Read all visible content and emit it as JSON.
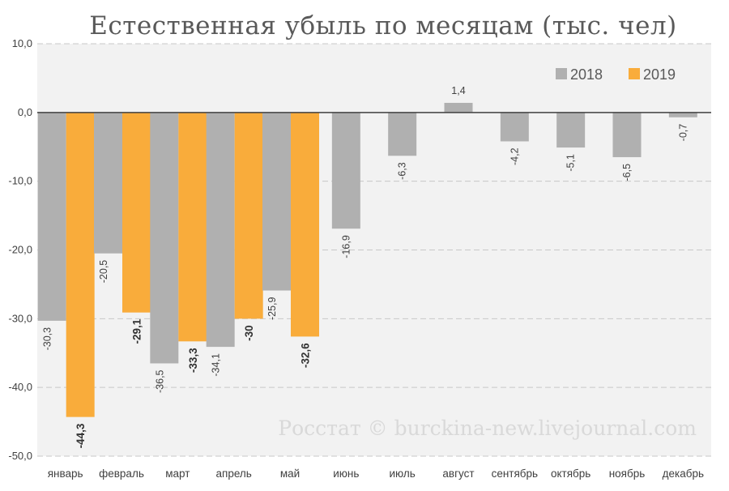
{
  "colors": {
    "series_2018": "#b0b0b0",
    "series_2019": "#f9ac3b",
    "plot_background": "#f2f2f2",
    "gridline": "#c8c8c8",
    "zero_line": "#404040"
  },
  "watermark": "Росстат © burckina-new.livejournal.com",
  "chart_data": {
    "type": "bar",
    "title": "Естественная убыль по месяцам (тыс. чел)",
    "categories": [
      "январь",
      "февраль",
      "март",
      "апрель",
      "май",
      "июнь",
      "июль",
      "август",
      "сентябрь",
      "октябрь",
      "ноябрь",
      "декабрь"
    ],
    "series": [
      {
        "name": "2018",
        "values": [
          -30.3,
          -20.5,
          -36.5,
          -34.1,
          -25.9,
          -16.9,
          -6.3,
          1.4,
          -4.2,
          -5.1,
          -6.5,
          -0.7
        ],
        "labels": [
          "-30,3",
          "-20,5",
          "-36,5",
          "-34,1",
          "-25,9",
          "-16,9",
          "-6,3",
          "1,4",
          "-4,2",
          "-5,1",
          "-6,5",
          "-0,7"
        ]
      },
      {
        "name": "2019",
        "values": [
          -44.3,
          -29.1,
          -33.3,
          -30,
          -32.6,
          null,
          null,
          null,
          null,
          null,
          null,
          null
        ],
        "labels": [
          "-44,3",
          "-29,1",
          "-33,3",
          "-30",
          "-32,6",
          null,
          null,
          null,
          null,
          null,
          null,
          null
        ]
      }
    ],
    "yticks": [
      10,
      0,
      -10,
      -20,
      -30,
      -40,
      -50
    ],
    "ytick_labels": [
      "10,0",
      "0,0",
      "-10,0",
      "-20,0",
      "-30,0",
      "-40,0",
      "-50,0"
    ],
    "ylim": [
      -50,
      10
    ],
    "grid": true,
    "legend": "top-right",
    "xlabel": "",
    "ylabel": ""
  }
}
